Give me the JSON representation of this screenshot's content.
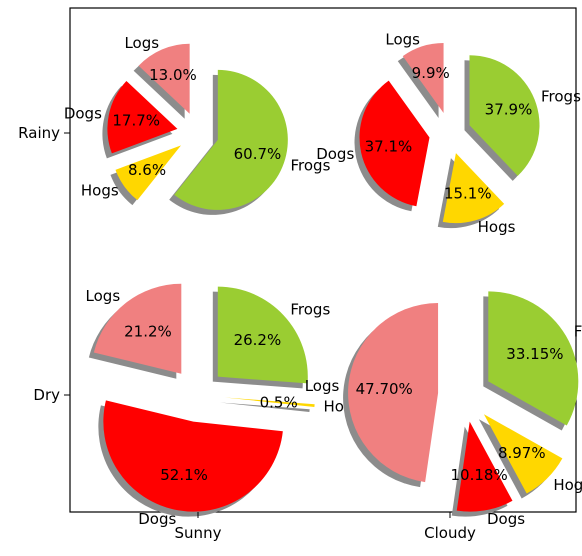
{
  "chart_data": {
    "type": "pie",
    "title": "",
    "x_ticks": [
      "Sunny",
      "Cloudy"
    ],
    "y_ticks": [
      "Rainy",
      "Dry"
    ],
    "colors": {
      "Logs": "#f08080",
      "Dogs": "#ff0000",
      "Hogs": "#ffd700",
      "Frogs": "#9acd32",
      "shadow": "#8c8c8c"
    },
    "pies": [
      {
        "x": "Sunny",
        "y": "Rainy",
        "slices": [
          {
            "name": "Logs",
            "value": 13.0,
            "label": "13.0%"
          },
          {
            "name": "Dogs",
            "value": 17.7,
            "label": "17.7%"
          },
          {
            "name": "Hogs",
            "value": 8.6,
            "label": "8.6%"
          },
          {
            "name": "Frogs",
            "value": 60.7,
            "label": "60.7%"
          }
        ]
      },
      {
        "x": "Cloudy",
        "y": "Rainy",
        "slices": [
          {
            "name": "Logs",
            "value": 9.9,
            "label": "9.9%"
          },
          {
            "name": "Dogs",
            "value": 37.1,
            "label": "37.1%"
          },
          {
            "name": "Hogs",
            "value": 15.1,
            "label": "15.1%"
          },
          {
            "name": "Frogs",
            "value": 37.9,
            "label": "37.9%"
          }
        ]
      },
      {
        "x": "Sunny",
        "y": "Dry",
        "slices": [
          {
            "name": "Logs",
            "value": 21.2,
            "label": "21.2%"
          },
          {
            "name": "Dogs",
            "value": 52.1,
            "label": "52.1%"
          },
          {
            "name": "Hogs",
            "value": 0.5,
            "label": "0.5%"
          },
          {
            "name": "Frogs",
            "value": 26.2,
            "label": "26.2%"
          }
        ]
      },
      {
        "x": "Cloudy",
        "y": "Dry",
        "slices": [
          {
            "name": "Logs",
            "value": 47.7,
            "label": "47.70%"
          },
          {
            "name": "Dogs",
            "value": 10.18,
            "label": "10.18%"
          },
          {
            "name": "Hogs",
            "value": 8.97,
            "label": "8.97%"
          },
          {
            "name": "Frogs",
            "value": 33.15,
            "label": "33.15%"
          }
        ]
      }
    ]
  }
}
